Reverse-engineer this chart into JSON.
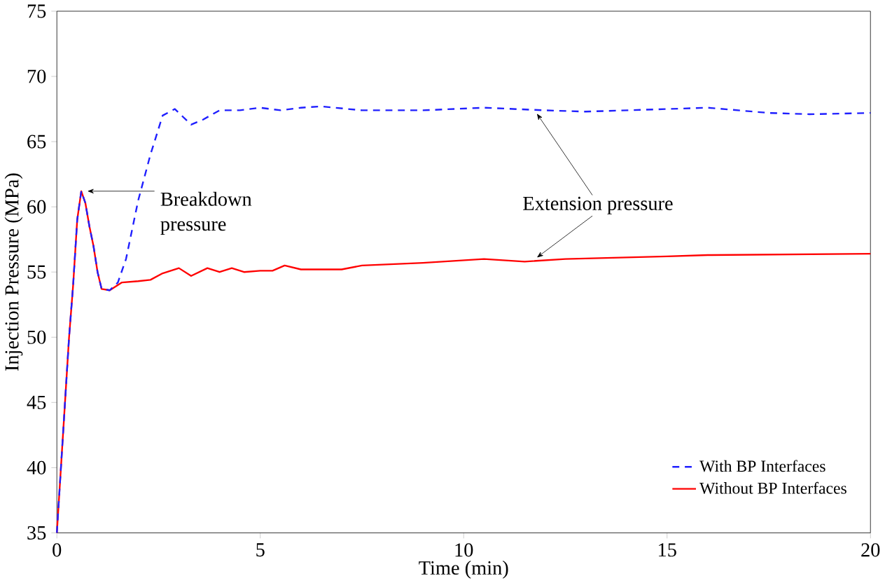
{
  "chart_data": {
    "type": "line",
    "xlabel": "Time (min)",
    "ylabel": "Injection Pressure (MPa)",
    "xlim": [
      0,
      20
    ],
    "xticks": [
      0,
      5,
      10,
      15,
      20
    ],
    "ylim": [
      35,
      75
    ],
    "yticks": [
      35,
      40,
      45,
      50,
      55,
      60,
      65,
      70,
      75
    ],
    "grid": false,
    "legend": "bottom right",
    "series": [
      {
        "name": "With BP Interfaces",
        "color": "#1f1fff",
        "line_style": "dashed",
        "x": [
          0,
          0.1,
          0.2,
          0.3,
          0.4,
          0.5,
          0.6,
          0.7,
          0.8,
          0.9,
          1.0,
          1.1,
          1.3,
          1.5,
          1.7,
          2.0,
          2.3,
          2.6,
          2.9,
          3.1,
          3.3,
          3.6,
          4.0,
          4.5,
          5.0,
          5.5,
          6.0,
          6.5,
          7.5,
          9,
          10.5,
          12,
          13,
          15,
          16,
          17.5,
          18.5,
          20
        ],
        "values": [
          35,
          40,
          45,
          50,
          54,
          59,
          61.2,
          60.3,
          58.5,
          57,
          55,
          53.7,
          53.6,
          54.2,
          56,
          60.5,
          64,
          67,
          67.5,
          66.9,
          66.3,
          66.7,
          67.4,
          67.4,
          67.6,
          67.4,
          67.6,
          67.7,
          67.4,
          67.4,
          67.6,
          67.4,
          67.3,
          67.5,
          67.6,
          67.2,
          67.1,
          67.2
        ]
      },
      {
        "name": "Without BP Interfaces",
        "color": "#ff0000",
        "line_style": "solid",
        "x": [
          0,
          0.1,
          0.2,
          0.3,
          0.4,
          0.5,
          0.6,
          0.7,
          0.8,
          0.9,
          1.0,
          1.1,
          1.3,
          1.6,
          2.0,
          2.3,
          2.6,
          3.0,
          3.3,
          3.7,
          4.0,
          4.3,
          4.6,
          5.0,
          5.3,
          5.6,
          6.0,
          7.0,
          7.5,
          9,
          10.5,
          11.5,
          12.5,
          15,
          16,
          20
        ],
        "values": [
          35,
          40,
          45,
          50,
          54,
          59,
          61.2,
          60.3,
          58.5,
          57,
          55,
          53.7,
          53.6,
          54.2,
          54.3,
          54.4,
          54.9,
          55.3,
          54.7,
          55.3,
          55.0,
          55.3,
          55.0,
          55.1,
          55.1,
          55.5,
          55.2,
          55.2,
          55.5,
          55.7,
          56.0,
          55.8,
          56.0,
          56.2,
          56.3,
          56.4
        ]
      }
    ],
    "annotations": [
      {
        "text": "Breakdown pressure",
        "x": 0.6,
        "y": 61.2
      },
      {
        "text": "Extension pressure",
        "x": 11.8,
        "y": 67.4
      }
    ]
  }
}
